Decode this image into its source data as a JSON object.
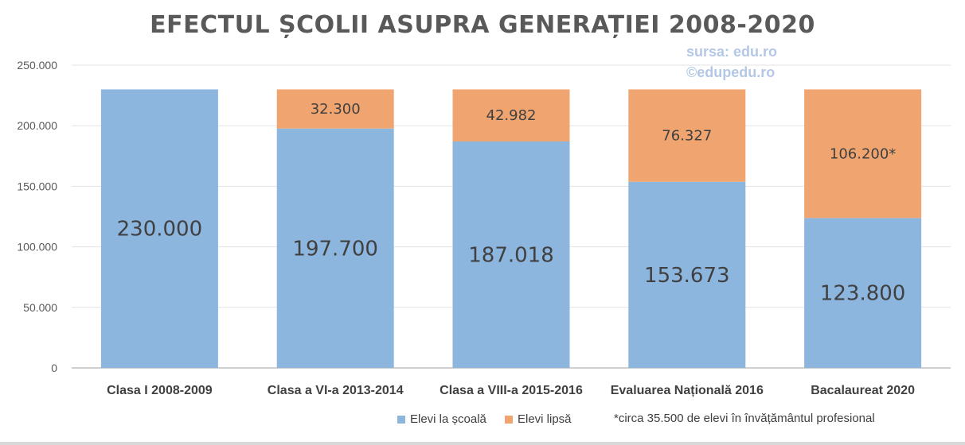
{
  "chart_data": {
    "type": "bar",
    "stacked": true,
    "title": "EFECTUL ȘCOLII ASUPRA GENERAȚIEI 2008-2020",
    "categories": [
      "Clasa I 2008-2009",
      "Clasa a VI-a 2013-2014",
      "Clasa a VIII-a 2015-2016",
      "Evaluarea Națională 2016",
      "Bacalaureat 2020"
    ],
    "series": [
      {
        "name": "Elevi la școală",
        "color": "#8db6df",
        "values": [
          230000,
          197700,
          187018,
          153673,
          123800
        ],
        "labels": [
          "230.000",
          "197.700",
          "187.018",
          "153.673",
          "123.800"
        ]
      },
      {
        "name": "Elevi lipsă",
        "color": "#f0a571",
        "values": [
          0,
          32300,
          42982,
          76327,
          106200
        ],
        "labels": [
          "",
          "32.300",
          "42.982",
          "76.327",
          "106.200*"
        ]
      }
    ],
    "ylim": [
      0,
      250000
    ],
    "yticks": [
      0,
      50000,
      100000,
      150000,
      200000,
      250000
    ],
    "ytick_labels": [
      "0",
      "50.000",
      "100.000",
      "150.000",
      "200.000",
      "250.000"
    ],
    "grid": true,
    "legend": "bottom",
    "xlabel": "",
    "ylabel": ""
  },
  "source": {
    "line1": "sursa: edu.ro",
    "line2": "©edupedu.ro"
  },
  "footnote": "*circa 35.500 de elevi în învățământul profesional"
}
